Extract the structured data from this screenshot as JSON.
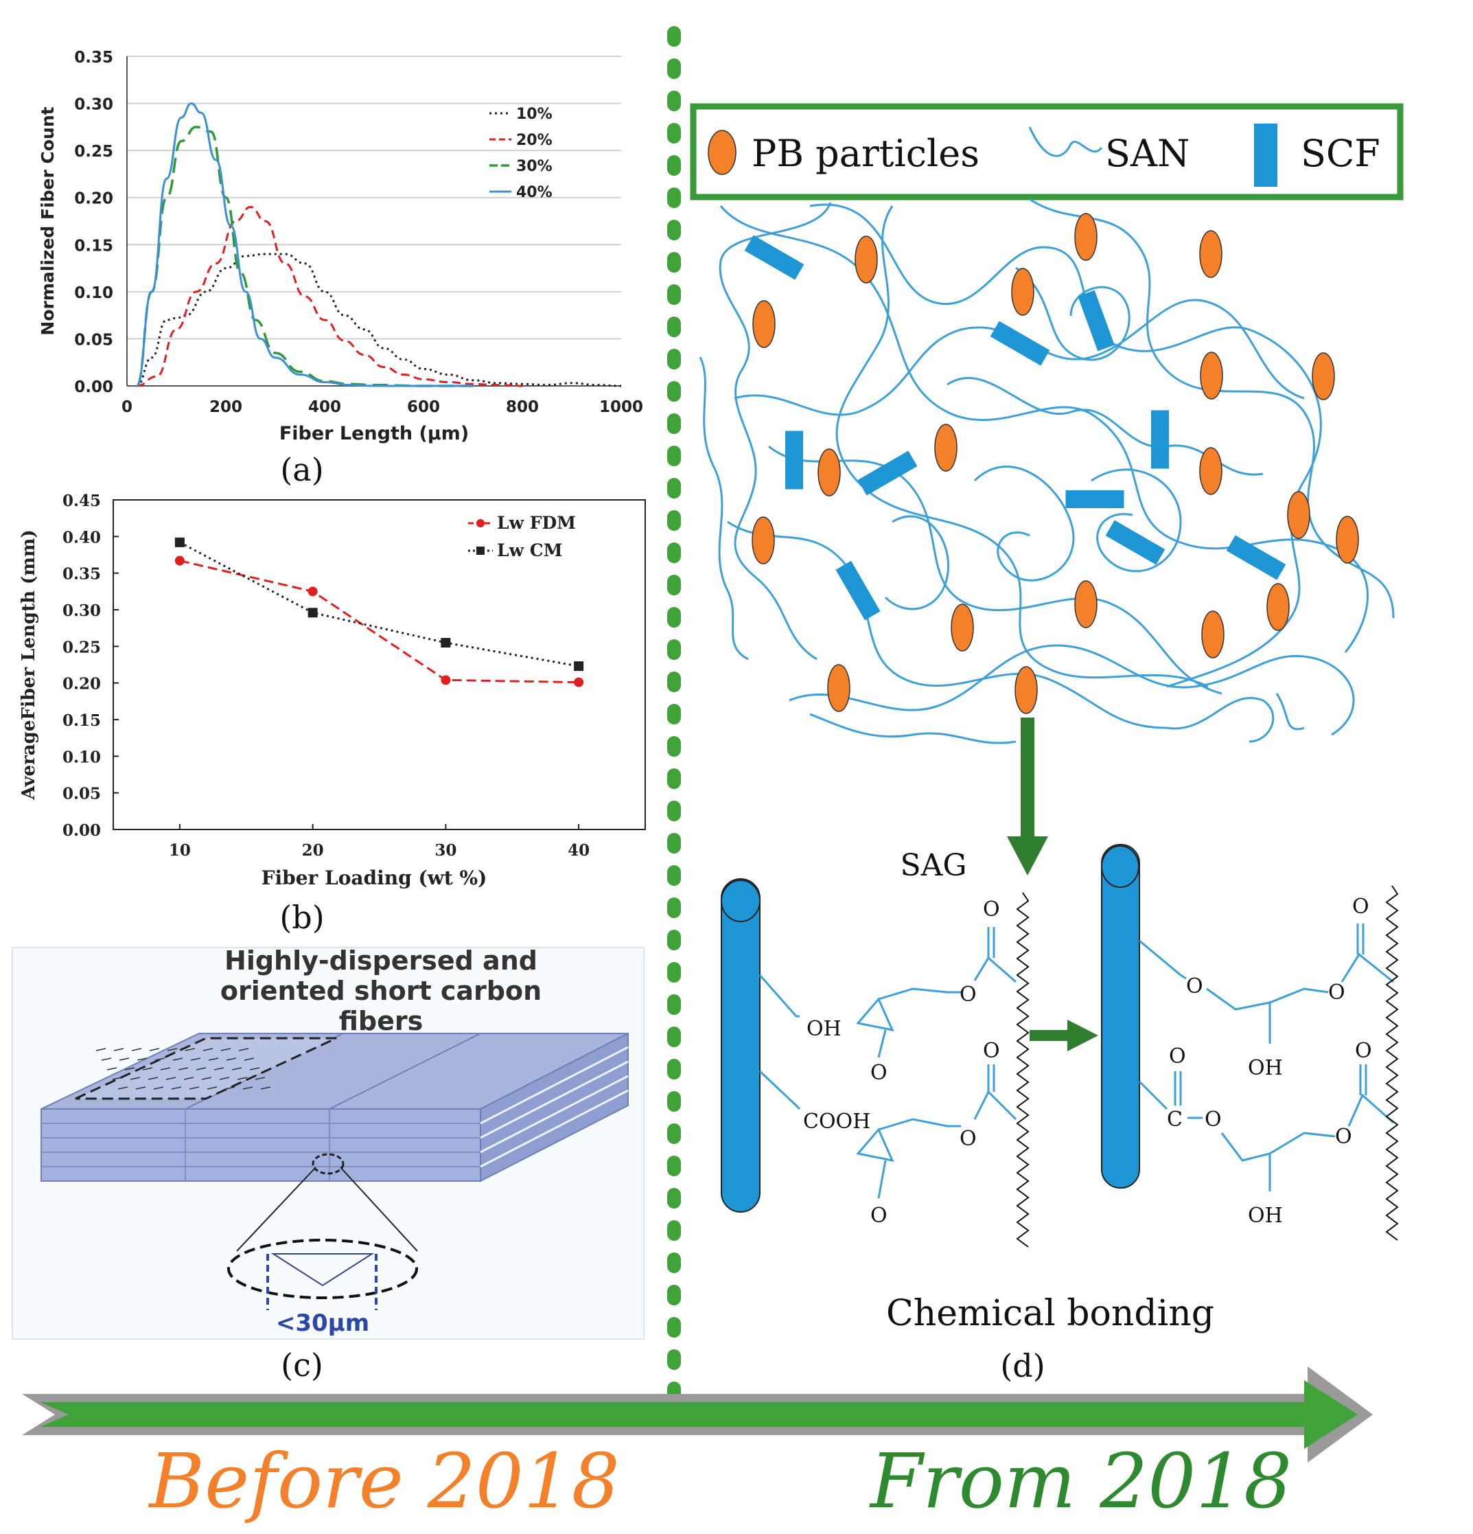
{
  "colors": {
    "green": "#3a9a3a",
    "dark_green": "#2f7d2f",
    "orange": "#f4812a",
    "blue": "#1e96d6",
    "line_blue": "#3ea0d8",
    "red": "#e02020",
    "gray": "#9a9a9a"
  },
  "panel_a": {
    "label": "(a)",
    "chart_data": {
      "type": "line",
      "xlabel": "Fiber Length (μm)",
      "ylabel": "Normalized Fiber Count",
      "xlim": [
        0,
        1000
      ],
      "ylim": [
        0,
        0.35
      ],
      "x_ticks": [
        "0",
        "200",
        "400",
        "600",
        "800",
        "1000"
      ],
      "y_ticks": [
        "0.00",
        "0.05",
        "0.10",
        "0.15",
        "0.20",
        "0.25",
        "0.30",
        "0.35"
      ],
      "legend": [
        "10%",
        "20%",
        "30%",
        "40%"
      ],
      "series": [
        {
          "name": "10%",
          "x": [
            20,
            50,
            80,
            100,
            120,
            160,
            200,
            240,
            280,
            320,
            360,
            400,
            440,
            480,
            520,
            560,
            600,
            650,
            700,
            750,
            800,
            850,
            900,
            950,
            1000
          ],
          "y": [
            0.0,
            0.03,
            0.07,
            0.072,
            0.075,
            0.1,
            0.125,
            0.138,
            0.14,
            0.14,
            0.13,
            0.1,
            0.075,
            0.06,
            0.04,
            0.028,
            0.018,
            0.012,
            0.006,
            0.003,
            0.002,
            0.001,
            0.003,
            0.001,
            0.0
          ]
        },
        {
          "name": "20%",
          "x": [
            20,
            60,
            100,
            140,
            180,
            220,
            250,
            280,
            320,
            360,
            400,
            440,
            480,
            520,
            560,
            600,
            650,
            700,
            750,
            800
          ],
          "y": [
            0.0,
            0.01,
            0.06,
            0.1,
            0.13,
            0.175,
            0.19,
            0.175,
            0.13,
            0.095,
            0.07,
            0.048,
            0.033,
            0.02,
            0.012,
            0.007,
            0.004,
            0.002,
            0.001,
            0.0
          ]
        },
        {
          "name": "30%",
          "x": [
            20,
            50,
            80,
            110,
            140,
            170,
            200,
            230,
            260,
            300,
            350,
            400,
            450,
            500,
            600,
            700
          ],
          "y": [
            0.0,
            0.1,
            0.2,
            0.26,
            0.275,
            0.27,
            0.2,
            0.12,
            0.07,
            0.035,
            0.015,
            0.005,
            0.002,
            0.001,
            0.0,
            0.0
          ]
        },
        {
          "name": "40%",
          "x": [
            20,
            50,
            80,
            110,
            130,
            150,
            180,
            210,
            240,
            270,
            300,
            350,
            400,
            450,
            500,
            600,
            700
          ],
          "y": [
            0.0,
            0.1,
            0.22,
            0.285,
            0.3,
            0.29,
            0.24,
            0.17,
            0.1,
            0.05,
            0.03,
            0.012,
            0.004,
            0.001,
            0.0,
            0.0,
            0.0
          ]
        }
      ]
    }
  },
  "panel_b": {
    "label": "(b)",
    "chart_data": {
      "type": "line",
      "xlabel": "Fiber Loading (wt %)",
      "ylabel": "AverageFiber Length (mm)",
      "xlim": [
        5,
        45
      ],
      "ylim": [
        0,
        0.45
      ],
      "x_ticks": [
        "10",
        "20",
        "30",
        "40"
      ],
      "y_ticks": [
        "0.00",
        "0.05",
        "0.10",
        "0.15",
        "0.20",
        "0.25",
        "0.30",
        "0.35",
        "0.40",
        "0.45"
      ],
      "legend": [
        "Lw FDM",
        "Lw CM"
      ],
      "categories": [
        10,
        20,
        30,
        40
      ],
      "series": [
        {
          "name": "Lw FDM",
          "values": [
            0.367,
            0.325,
            0.204,
            0.201
          ]
        },
        {
          "name": "Lw CM",
          "values": [
            0.392,
            0.296,
            0.255,
            0.223
          ]
        }
      ]
    }
  },
  "panel_c": {
    "title_line1": "Highly-dispersed and",
    "title_line2": "oriented short carbon",
    "title_line3": "fibers",
    "scale_label": "<30μm",
    "label": "(c)"
  },
  "panel_d": {
    "legend_pb": "PB particles",
    "legend_san": "SAN",
    "legend_scf": "SCF",
    "sag_label": "SAG",
    "oh_label": "OH",
    "cooh_label": "COOH",
    "o_label": "O",
    "c_label": "C",
    "caption": "Chemical bonding",
    "label": "(d)"
  },
  "timeline": {
    "before": "Before 2018",
    "from": "From 2018"
  }
}
